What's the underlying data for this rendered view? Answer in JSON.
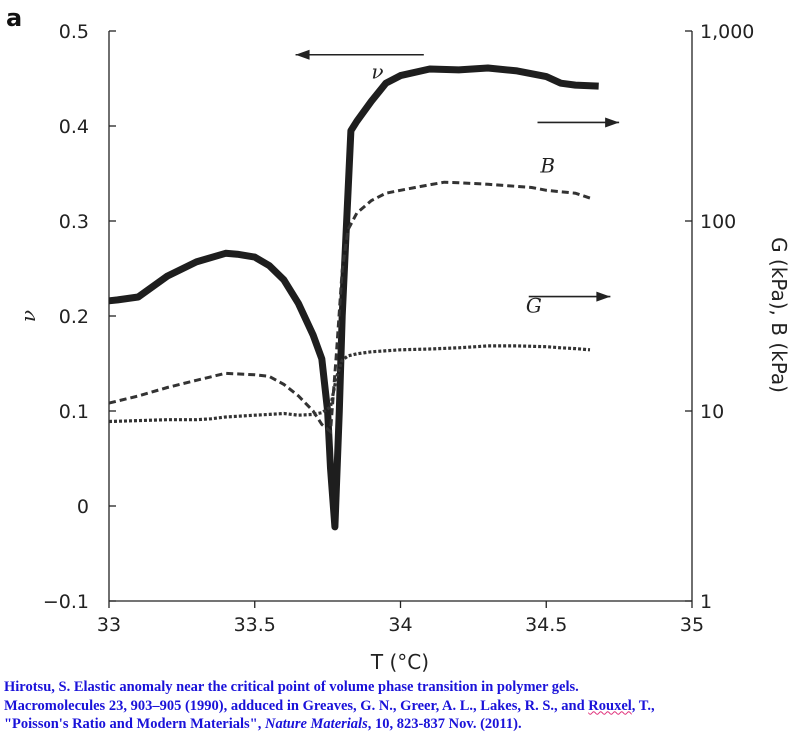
{
  "panel_letter": "a",
  "chart_data": {
    "type": "line",
    "x_axis": {
      "label": "T (°C)",
      "range": [
        33,
        35
      ],
      "ticks": [
        33,
        33.5,
        34,
        34.5,
        35
      ],
      "tick_labels": [
        "33",
        "33.5",
        "34",
        "34.5",
        "35"
      ]
    },
    "y_left_axis": {
      "label": "ν",
      "range": [
        -0.1,
        0.5
      ],
      "ticks": [
        -0.1,
        0,
        0.1,
        0.2,
        0.3,
        0.4,
        0.5
      ],
      "tick_labels": [
        "−0.1",
        "0",
        "0.1",
        "0.2",
        "0.3",
        "0.4",
        "0.5"
      ]
    },
    "y_right_axis": {
      "label": "G (kPa), B (kPa)",
      "scale": "log",
      "range": [
        1,
        1000
      ],
      "ticks": [
        1,
        10,
        100,
        1000
      ],
      "tick_labels": [
        "1",
        "10",
        "100",
        "1,000"
      ]
    },
    "series": [
      {
        "name": "ν",
        "axis": "left",
        "style": "solid-thick",
        "x": [
          33.0,
          33.03,
          33.1,
          33.2,
          33.3,
          33.4,
          33.44,
          33.5,
          33.55,
          33.6,
          33.65,
          33.7,
          33.73,
          33.75,
          33.76,
          33.775,
          33.79,
          33.8,
          33.83,
          33.85,
          33.9,
          33.95,
          34.0,
          34.1,
          34.2,
          34.3,
          34.4,
          34.5,
          34.55,
          34.6,
          34.68
        ],
        "y": [
          0.216,
          0.217,
          0.22,
          0.242,
          0.257,
          0.266,
          0.265,
          0.262,
          0.253,
          0.238,
          0.213,
          0.18,
          0.155,
          0.1,
          0.04,
          -0.022,
          0.1,
          0.2,
          0.395,
          0.405,
          0.426,
          0.445,
          0.453,
          0.46,
          0.459,
          0.461,
          0.458,
          0.452,
          0.445,
          0.443,
          0.442
        ]
      },
      {
        "name": "B",
        "axis": "right",
        "style": "dashed",
        "x": [
          33.0,
          33.1,
          33.2,
          33.3,
          33.4,
          33.5,
          33.55,
          33.6,
          33.65,
          33.7,
          33.73,
          33.76,
          33.78,
          33.8,
          33.82,
          33.85,
          33.9,
          33.95,
          34.0,
          34.05,
          34.1,
          34.15,
          34.2,
          34.3,
          34.4,
          34.45,
          34.5,
          34.6,
          34.65
        ],
        "y": [
          11,
          12,
          13.3,
          14.5,
          15.8,
          15.5,
          15.2,
          13.8,
          12.0,
          10.0,
          8.5,
          7.8,
          20,
          55,
          90,
          110,
          128,
          140,
          145,
          150,
          155,
          160,
          159,
          156,
          152,
          150,
          145,
          140,
          132
        ]
      },
      {
        "name": "G",
        "axis": "right",
        "style": "dotted",
        "x": [
          33.0,
          33.1,
          33.2,
          33.3,
          33.35,
          33.4,
          33.5,
          33.55,
          33.6,
          33.65,
          33.7,
          33.73,
          33.76,
          33.78,
          33.8,
          33.82,
          33.85,
          33.9,
          34.0,
          34.1,
          34.2,
          34.3,
          34.4,
          34.5,
          34.55,
          34.6,
          34.65
        ],
        "y": [
          8.8,
          8.9,
          9.0,
          9.0,
          9.1,
          9.3,
          9.5,
          9.6,
          9.7,
          9.5,
          9.6,
          9.8,
          10.5,
          15,
          18.5,
          19.5,
          20,
          20.5,
          21,
          21.2,
          21.5,
          22,
          22,
          21.8,
          21.5,
          21.3,
          21
        ]
      }
    ],
    "annotations": [
      {
        "kind": "arrow",
        "direction": "left",
        "x_from": 34.08,
        "x_to": 33.64,
        "y_value": 0.475,
        "axis": "left",
        "meaning": "ν refers to left axis"
      },
      {
        "kind": "arrow",
        "direction": "right",
        "x_from": 34.47,
        "x_to": 34.75,
        "y_value": 330,
        "axis": "right",
        "meaning": "B refers to right axis"
      },
      {
        "kind": "arrow",
        "direction": "right",
        "x_from": 34.44,
        "x_to": 34.72,
        "y_value": 40,
        "axis": "right",
        "meaning": "G refers to right axis"
      },
      {
        "kind": "label",
        "text": "ν",
        "x": 33.9,
        "y": 0.45,
        "axis": "left"
      },
      {
        "kind": "label",
        "text": "B",
        "x": 34.48,
        "y": 180,
        "axis": "right"
      },
      {
        "kind": "label",
        "text": "G",
        "x": 34.43,
        "y": 33,
        "axis": "right"
      }
    ]
  },
  "caption": {
    "line1": "Hirotsu, S. Elastic anomaly near the critical point of volume phase transition in polymer gels.",
    "line2_before": "Macromolecules 23, 903–905 (1990), adduced in Greaves, G. N., Greer, A. L., Lakes, R. S., and ",
    "line2_squiggle": "Rouxel",
    "line2_after": ", T.,",
    "line3_before": "\"Poisson's Ratio and Modern Materials\", ",
    "line3_journal": "Nature Materials",
    "line3_after": ", 10, 823-837 Nov. (2011)."
  },
  "colors": {
    "caption": "#1a12d9",
    "curves": "#1e1e1e"
  }
}
